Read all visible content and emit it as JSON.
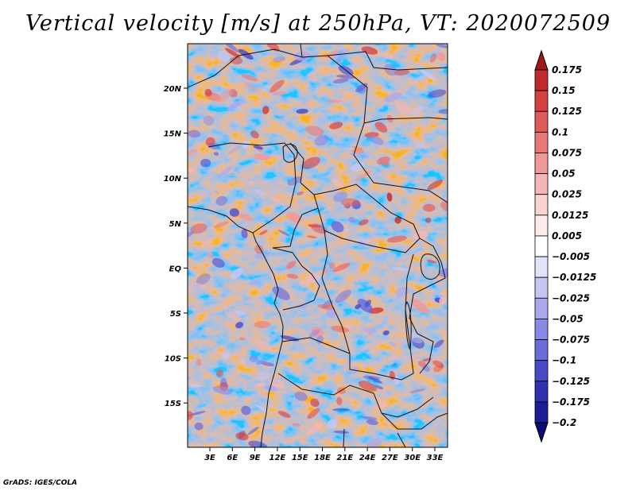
{
  "title": "Vertical velocity [m/s] at 250hPa, VT: 2020072509",
  "credit": "GrADS: IGES/COLA",
  "map": {
    "lat_ticks": [
      "20N",
      "15N",
      "10N",
      "5N",
      "EQ",
      "5S",
      "10S",
      "15S"
    ],
    "lon_ticks": [
      "3E",
      "6E",
      "9E",
      "12E",
      "15E",
      "18E",
      "21E",
      "24E",
      "27E",
      "30E",
      "33E"
    ],
    "region": "Central Africa",
    "field": "vertical velocity",
    "units": "m/s",
    "level": "250hPa"
  },
  "colorbar": {
    "labels": [
      "0.175",
      "0.15",
      "0.125",
      "0.1",
      "0.075",
      "0.05",
      "0.025",
      "0.0125",
      "0.005",
      "-0.005",
      "-0.0125",
      "-0.025",
      "-0.05",
      "-0.075",
      "-0.1",
      "-0.125",
      "-0.175",
      "-0.2"
    ],
    "colors": [
      "#a01818",
      "#bf2a2a",
      "#d44040",
      "#e05a5a",
      "#e87878",
      "#ef9898",
      "#f5b6b6",
      "#f9d2d2",
      "#fdeaea",
      "#ffffff",
      "#e2e2fb",
      "#c6c6f5",
      "#a9a9ef",
      "#8a8ae6",
      "#6a6ad8",
      "#4a4ac8",
      "#3030b0",
      "#1c1c96",
      "#0c0c74"
    ]
  }
}
